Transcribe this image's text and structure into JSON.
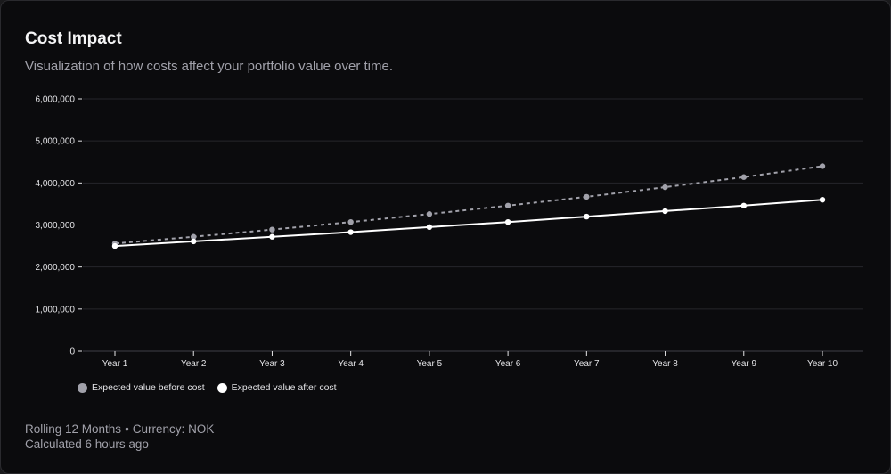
{
  "card": {
    "title": "Cost Impact",
    "subtitle": "Visualization of how costs affect your portfolio value over time."
  },
  "footer": {
    "period": "Rolling 12 Months",
    "separator": "•",
    "currency": "Currency: NOK",
    "calculated": "Calculated 6 hours ago"
  },
  "colors": {
    "before": "#a1a1aa",
    "after": "#ffffff",
    "grid": "#26262b",
    "axis_text": "#e4e4e7"
  },
  "chart_data": {
    "type": "line",
    "categories": [
      "Year 1",
      "Year 2",
      "Year 3",
      "Year 4",
      "Year 5",
      "Year 6",
      "Year 7",
      "Year 8",
      "Year 9",
      "Year 10"
    ],
    "y_ticks": [
      "0",
      "1,000,000",
      "2,000,000",
      "3,000,000",
      "4,000,000",
      "5,000,000",
      "6,000,000"
    ],
    "ylim": [
      0,
      6000000
    ],
    "grid": true,
    "legend_position": "bottom-left",
    "series": [
      {
        "name": "Expected value before cost",
        "style": "dashed",
        "values": [
          2560000,
          2720000,
          2890000,
          3070000,
          3260000,
          3460000,
          3670000,
          3900000,
          4140000,
          4400000
        ]
      },
      {
        "name": "Expected value after cost",
        "style": "solid",
        "values": [
          2500000,
          2610000,
          2720000,
          2830000,
          2950000,
          3070000,
          3200000,
          3330000,
          3460000,
          3600000
        ]
      }
    ]
  }
}
